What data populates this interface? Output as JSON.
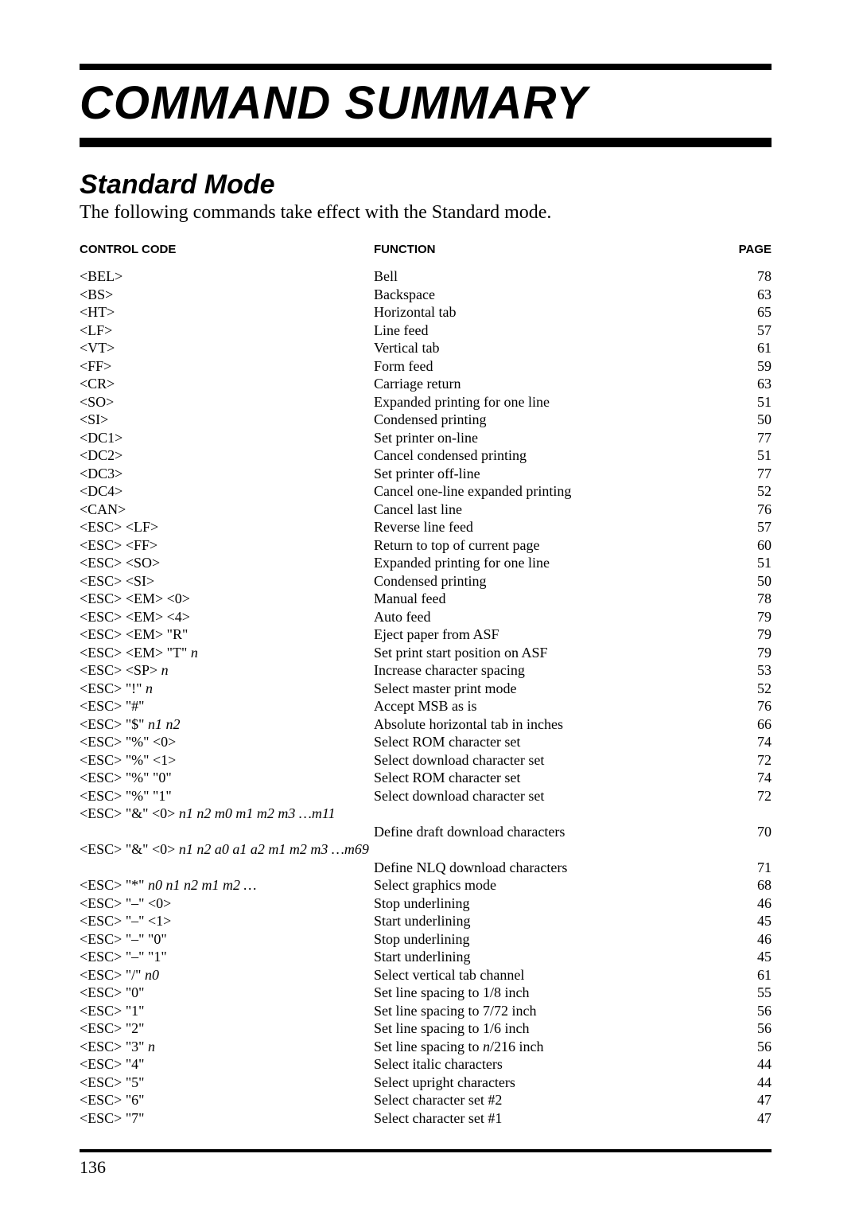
{
  "heading": "COMMAND SUMMARY",
  "section": "Standard Mode",
  "intro": "The following commands take effect with the Standard mode.",
  "headers": {
    "code": "CONTROL CODE",
    "func": "FUNCTION",
    "page": "PAGE"
  },
  "rows": [
    {
      "code": "<BEL>",
      "func": "Bell",
      "page": "78"
    },
    {
      "code": "<BS>",
      "func": "Backspace",
      "page": "63"
    },
    {
      "code": "<HT>",
      "func": "Horizontal tab",
      "page": "65"
    },
    {
      "code": "<LF>",
      "func": "Line feed",
      "page": "57"
    },
    {
      "code": "<VT>",
      "func": "Vertical tab",
      "page": "61"
    },
    {
      "code": "<FF>",
      "func": "Form feed",
      "page": "59"
    },
    {
      "code": "<CR>",
      "func": "Carriage return",
      "page": "63"
    },
    {
      "code": "<SO>",
      "func": "Expanded printing for one line",
      "page": "51"
    },
    {
      "code": "<SI>",
      "func": "Condensed printing",
      "page": "50"
    },
    {
      "code": "<DC1>",
      "func": "Set printer on-line",
      "page": "77"
    },
    {
      "code": "<DC2>",
      "func": "Cancel condensed printing",
      "page": "51"
    },
    {
      "code": "<DC3>",
      "func": "Set printer off-line",
      "page": "77"
    },
    {
      "code": "<DC4>",
      "func": "Cancel one-line expanded printing",
      "page": "52"
    },
    {
      "code": "<CAN>",
      "func": "Cancel last line",
      "page": "76"
    },
    {
      "code": "<ESC> <LF>",
      "func": "Reverse line feed",
      "page": "57"
    },
    {
      "code": "<ESC> <FF>",
      "func": "Return to top of current page",
      "page": "60"
    },
    {
      "code": "<ESC> <SO>",
      "func": "Expanded printing for one line",
      "page": "51"
    },
    {
      "code": "<ESC> <SI>",
      "func": "Condensed printing",
      "page": "50"
    },
    {
      "code": "<ESC> <EM> <0>",
      "func": "Manual feed",
      "page": "78"
    },
    {
      "code": "<ESC> <EM> <4>",
      "func": "Auto feed",
      "page": "79"
    },
    {
      "code": "<ESC> <EM> \"R\"",
      "func": "Eject paper from ASF",
      "page": "79"
    },
    {
      "code_pre": "<ESC> <EM> \"T\" ",
      "code_ital": "n",
      "func": "Set print start position on ASF",
      "page": "79"
    },
    {
      "code_pre": "<ESC> <SP> ",
      "code_ital": "n",
      "func": "Increase character spacing",
      "page": "53"
    },
    {
      "code_pre": "<ESC> \"!\" ",
      "code_ital": "n",
      "func": "Select master print mode",
      "page": "52"
    },
    {
      "code": "<ESC> \"#\"",
      "func": "Accept MSB as is",
      "page": "76"
    },
    {
      "code_pre": "<ESC> \"$\" ",
      "code_ital": "n1 n2",
      "func": "Absolute horizontal tab in inches",
      "page": "66"
    },
    {
      "code": "<ESC> \"%\" <0>",
      "func": "Select ROM character set",
      "page": "74"
    },
    {
      "code": "<ESC> \"%\" <1>",
      "func": "Select download character set",
      "page": "72"
    },
    {
      "code": "<ESC> \"%\" \"0\"",
      "func": "Select ROM character set",
      "page": "74"
    },
    {
      "code": "<ESC> \"%\" \"1\"",
      "func": "Select download character set",
      "page": "72"
    },
    {
      "full_pre": "<ESC> \"&\" <0> ",
      "full_ital": "n1 n2 m0 m1 m2 m3 …m11"
    },
    {
      "code": "",
      "func": "Define draft download characters",
      "page": "70"
    },
    {
      "full_pre": "<ESC> \"&\" <0> ",
      "full_ital": "n1 n2 a0 a1 a2 m1 m2 m3 …m69"
    },
    {
      "code": "",
      "func": "Define NLQ download characters",
      "page": "71"
    },
    {
      "code_pre": "<ESC> \"*\" ",
      "code_ital": "n0 n1 n2 m1 m2 …",
      "func": "Select graphics mode",
      "page": "68"
    },
    {
      "code": "<ESC> \"–\" <0>",
      "func": "Stop underlining",
      "page": "46"
    },
    {
      "code": "<ESC> \"–\" <1>",
      "func": "Start underlining",
      "page": "45"
    },
    {
      "code": "<ESC> \"–\" \"0\"",
      "func": "Stop underlining",
      "page": "46"
    },
    {
      "code": "<ESC> \"–\" \"1\"",
      "func": "Start underlining",
      "page": "45"
    },
    {
      "code_pre": "<ESC> \"/\" ",
      "code_ital": "n0",
      "func": "Select vertical tab channel",
      "page": "61"
    },
    {
      "code": "<ESC> \"0\"",
      "func": "Set line spacing to 1/8 inch",
      "page": "55"
    },
    {
      "code": "<ESC> \"1\"",
      "func": "Set line spacing to 7/72 inch",
      "page": "56"
    },
    {
      "code": "<ESC> \"2\"",
      "func": "Set line spacing to 1/6 inch",
      "page": "56"
    },
    {
      "code_pre": "<ESC> \"3\" ",
      "code_ital": "n",
      "func_pre": "Set line spacing to ",
      "func_ital": "n",
      "func_post": "/216 inch",
      "page": "56"
    },
    {
      "code": "<ESC> \"4\"",
      "func": "Select italic characters",
      "page": "44"
    },
    {
      "code": "<ESC> \"5\"",
      "func": "Select upright characters",
      "page": "44"
    },
    {
      "code": "<ESC> \"6\"",
      "func": "Select character set #2",
      "page": "47"
    },
    {
      "code": "<ESC> \"7\"",
      "func": "Select character set #1",
      "page": "47"
    }
  ],
  "page_number": "136"
}
